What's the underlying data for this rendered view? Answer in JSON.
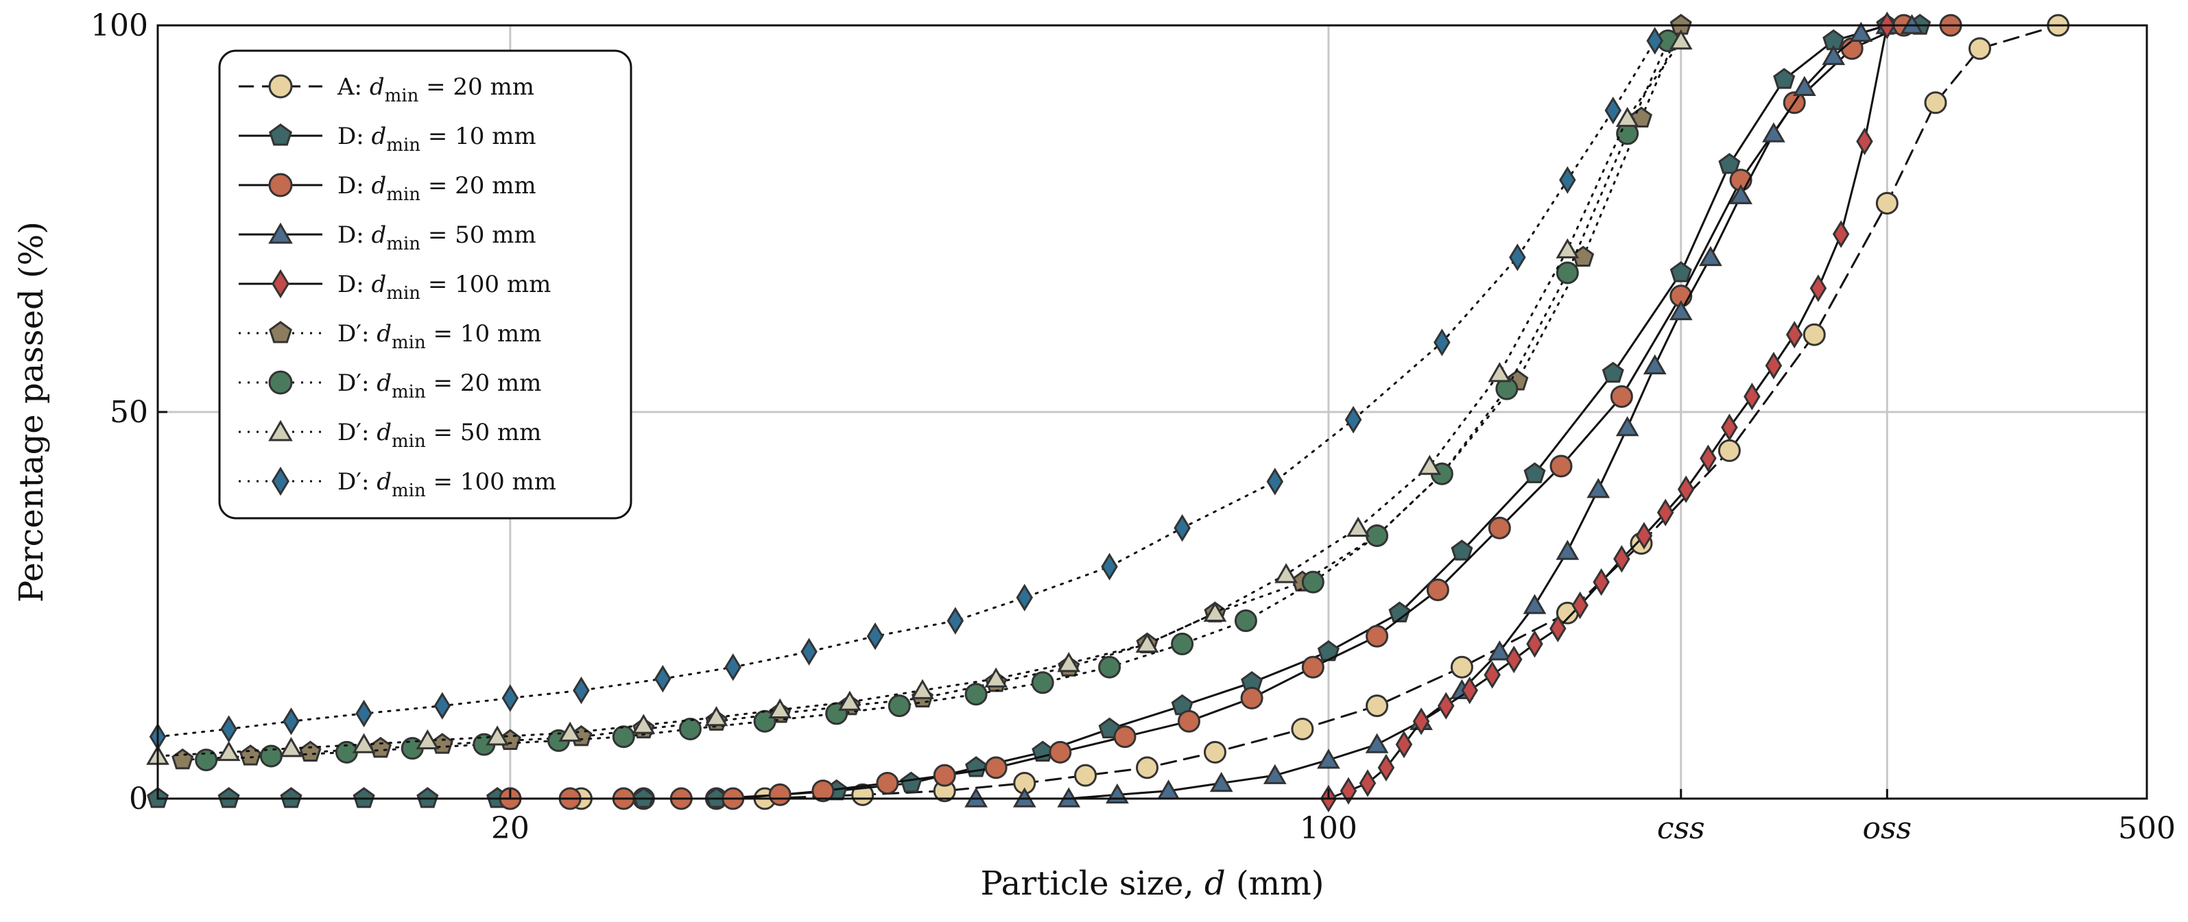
{
  "chart_data": {
    "type": "line",
    "xscale": "log",
    "xlim": [
      10,
      500
    ],
    "ylim": [
      0,
      100
    ],
    "xlabel_text": "Particle size, ",
    "xlabel_var": "d",
    "xlabel_unit": " (mm)",
    "ylabel": "Percentage passed (%)",
    "x_ticks": [
      {
        "value": 20,
        "label": "20",
        "italic": false
      },
      {
        "value": 100,
        "label": "100",
        "italic": false
      },
      {
        "value": 200,
        "label": "css",
        "italic": true
      },
      {
        "value": 300,
        "label": "oss",
        "italic": true
      },
      {
        "value": 500,
        "label": "500",
        "italic": false
      }
    ],
    "y_ticks": [
      {
        "value": 0,
        "label": "0"
      },
      {
        "value": 50,
        "label": "50"
      },
      {
        "value": 100,
        "label": "100"
      }
    ],
    "grid": true,
    "legend_position": "top-left",
    "series": [
      {
        "name": "A: dmin = 20 mm",
        "prefix": "A: ",
        "sub": "min",
        "rest": " = 20 mm",
        "line": "dashed",
        "marker": "circle",
        "color": "#e8d3a0",
        "x": [
          20,
          23,
          26,
          30,
          33,
          40,
          47,
          55,
          62,
          70,
          80,
          95,
          110,
          130,
          160,
          185,
          220,
          260,
          300,
          330,
          360,
          420
        ],
        "y": [
          0,
          0,
          0,
          0,
          0,
          0.5,
          1,
          2,
          3,
          4,
          6,
          9,
          12,
          17,
          24,
          33,
          45,
          60,
          77,
          90,
          97,
          100
        ]
      },
      {
        "name": "D: dmin = 10 mm",
        "prefix": "D: ",
        "sub": "min",
        "rest": " = 10 mm",
        "line": "solid",
        "marker": "pentagon",
        "color": "#3d6666",
        "x": [
          10,
          11.5,
          13,
          15,
          17,
          19.5,
          22.5,
          26,
          30,
          34,
          38,
          44,
          50,
          57,
          65,
          75,
          86,
          100,
          115,
          130,
          150,
          175,
          200,
          220,
          245,
          270,
          300,
          320
        ],
        "y": [
          0,
          0,
          0,
          0,
          0,
          0,
          0,
          0,
          0,
          0.5,
          1,
          2,
          4,
          6,
          9,
          12,
          15,
          19,
          24,
          32,
          42,
          55,
          68,
          82,
          93,
          98,
          100,
          100
        ]
      },
      {
        "name": "D: dmin = 20 mm",
        "prefix": "D: ",
        "sub": "min",
        "rest": " = 20 mm",
        "line": "solid",
        "marker": "circle",
        "color": "#c46a4e",
        "x": [
          20,
          22.5,
          25,
          28,
          31,
          34,
          37,
          42,
          47,
          52,
          59,
          67,
          76,
          86,
          97,
          110,
          124,
          140,
          158,
          178,
          200,
          225,
          250,
          280,
          310,
          340
        ],
        "y": [
          0,
          0,
          0,
          0,
          0,
          0.5,
          1,
          2,
          3,
          4,
          6,
          8,
          10,
          13,
          17,
          21,
          27,
          35,
          43,
          52,
          65,
          80,
          90,
          97,
          100,
          100
        ]
      },
      {
        "name": "D: dmin = 50 mm",
        "prefix": "D: ",
        "sub": "min",
        "rest": " = 50 mm",
        "line": "solid",
        "marker": "triangle",
        "color": "#4a6c8c",
        "x": [
          50,
          55,
          60,
          66,
          73,
          81,
          90,
          100,
          110,
          120,
          130,
          140,
          150,
          160,
          170,
          180,
          190,
          200,
          212,
          225,
          240,
          255,
          270,
          285,
          300,
          315
        ],
        "y": [
          0,
          0,
          0,
          0.5,
          1,
          2,
          3,
          5,
          7,
          10,
          14,
          19,
          25,
          32,
          40,
          48,
          56,
          63,
          70,
          78,
          86,
          92,
          96,
          99,
          100,
          100
        ]
      },
      {
        "name": "D: dmin = 100 mm",
        "prefix": "D: ",
        "sub": "min",
        "rest": " = 100 mm",
        "line": "solid",
        "marker": "diamond",
        "color": "#c24a4a",
        "x": [
          100,
          104,
          108,
          112,
          116,
          120,
          126,
          132,
          138,
          144,
          150,
          157,
          164,
          171,
          178,
          186,
          194,
          202,
          211,
          220,
          230,
          240,
          250,
          262,
          274,
          287,
          300
        ],
        "y": [
          0,
          1,
          2,
          4,
          7,
          10,
          12,
          14,
          16,
          18,
          20,
          22,
          25,
          28,
          31,
          34,
          37,
          40,
          44,
          48,
          52,
          56,
          60,
          66,
          73,
          85,
          100
        ]
      },
      {
        "name": "D′: dmin = 10 mm",
        "prefix": "D′: ",
        "sub": "min",
        "rest": " = 10 mm",
        "line": "dotted",
        "marker": "pentagon",
        "color": "#8c7d5e",
        "x": [
          10.5,
          12,
          13.5,
          15.5,
          17.5,
          20,
          23,
          26,
          30,
          34,
          39,
          45,
          52,
          60,
          70,
          80,
          95,
          110,
          125,
          145,
          165,
          185,
          200
        ],
        "y": [
          5,
          5.5,
          6,
          6.5,
          7,
          7.5,
          8,
          9,
          10,
          11,
          12,
          13,
          15,
          17,
          20,
          24,
          28,
          34,
          42,
          54,
          70,
          88,
          100
        ]
      },
      {
        "name": "D′: dmin = 20 mm",
        "prefix": "D′: ",
        "sub": "min",
        "rest": " = 20 mm",
        "line": "dotted",
        "marker": "circle",
        "color": "#4a7a5c",
        "x": [
          11,
          12.5,
          14.5,
          16.5,
          19,
          22,
          25,
          28.5,
          33,
          38,
          43,
          50,
          57,
          65,
          75,
          85,
          97,
          110,
          125,
          142,
          160,
          180,
          195
        ],
        "y": [
          5,
          5.5,
          6,
          6.5,
          7,
          7.5,
          8,
          9,
          10,
          11,
          12,
          13.5,
          15,
          17,
          20,
          23,
          28,
          34,
          42,
          53,
          68,
          86,
          98
        ]
      },
      {
        "name": "D′: dmin = 50 mm",
        "prefix": "D′: ",
        "sub": "min",
        "rest": " = 50 mm",
        "line": "dotted",
        "marker": "triangle",
        "color": "#d2cfb8",
        "x": [
          10,
          11.5,
          13,
          15,
          17,
          19.5,
          22.5,
          26,
          30,
          34,
          39,
          45,
          52,
          60,
          70,
          80,
          92,
          106,
          122,
          140,
          160,
          180,
          200
        ],
        "y": [
          5.5,
          6,
          6.5,
          7,
          7.5,
          8,
          8.5,
          9.5,
          10.5,
          11.5,
          12.5,
          14,
          15.5,
          17.5,
          20,
          24,
          29,
          35,
          43,
          55,
          71,
          88,
          98
        ]
      },
      {
        "name": "D′: dmin = 100 mm",
        "prefix": "D′: ",
        "sub": "min",
        "rest": " = 100 mm",
        "line": "dotted",
        "marker": "diamond",
        "color": "#2f6f95",
        "x": [
          10,
          11.5,
          13,
          15,
          17.5,
          20,
          23,
          27,
          31,
          36,
          41,
          48,
          55,
          65,
          75,
          90,
          105,
          125,
          145,
          160,
          175,
          190
        ],
        "y": [
          8,
          9,
          10,
          11,
          12,
          13,
          14,
          15.5,
          17,
          19,
          21,
          23,
          26,
          30,
          35,
          41,
          49,
          59,
          70,
          80,
          89,
          98
        ]
      }
    ]
  }
}
